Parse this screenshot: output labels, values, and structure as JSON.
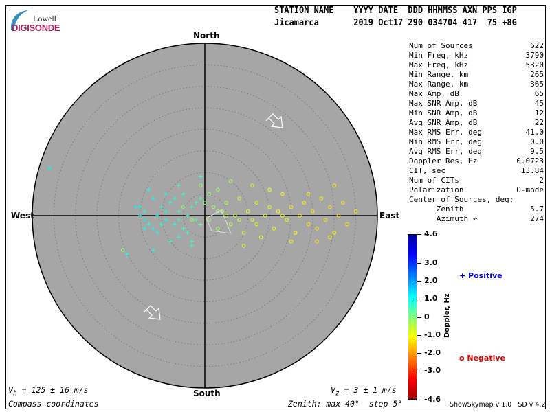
{
  "logo": {
    "line1": "Lowell",
    "line2": "DIGISONDE"
  },
  "header": {
    "labels": "STATION NAME    YYYY DATE  DDD HHMMSS AXN PPS IGP",
    "values": "Jicamarca       2019 Oct17 290 034704 417  75 +8G"
  },
  "stats": [
    {
      "label": "Num of Sources",
      "value": "622"
    },
    {
      "label": "Min Freq, kHz",
      "value": "3790"
    },
    {
      "label": "Max Freq, kHz",
      "value": "5320"
    },
    {
      "label": "Min Range, km",
      "value": "265"
    },
    {
      "label": "Max Range, km",
      "value": "365"
    },
    {
      "label": "Max Amp, dB",
      "value": "65"
    },
    {
      "label": "Max SNR Amp, dB",
      "value": "45"
    },
    {
      "label": "Min SNR Amp, dB",
      "value": "12"
    },
    {
      "label": "Avg SNR Amp, dB",
      "value": "22"
    },
    {
      "label": "Max RMS Err, deg",
      "value": "41.0"
    },
    {
      "label": "Min RMS Err, deg",
      "value": "0.0"
    },
    {
      "label": "Avg RMS Err, deg",
      "value": "9.5"
    },
    {
      "label": "Doppler Res, Hz",
      "value": "0.0723"
    },
    {
      "label": "CIT, sec",
      "value": "13.84"
    },
    {
      "label": "Num of CITs",
      "value": "2"
    },
    {
      "label": "Polarization",
      "value": "O-mode"
    },
    {
      "label": "Center of Sources, deg:",
      "value": ""
    },
    {
      "label": "      Zenith",
      "value": "5.7"
    },
    {
      "label": "      Azimuth ↶",
      "value": "274"
    }
  ],
  "compass": {
    "north": "North",
    "south": "South",
    "east": "East",
    "west": "West"
  },
  "footer": {
    "vh": "V",
    "vh_sub": "h",
    "vh_value": " = 125 ± 16 m/s",
    "vz": "V",
    "vz_sub": "z",
    "vz_value": " = 3 ± 1 m/s",
    "coords": "Compass coordinates",
    "zenith": "Zenith: max 40°  step 5°",
    "version": "ShowSkymap v 1.0   SD v 4.2"
  },
  "legend": {
    "positive": "Positive",
    "negative": "Negative",
    "positive_color": "#0000dd",
    "negative_color": "#dd0000"
  },
  "chart_data": {
    "type": "scatter",
    "projection": "polar sky map, compass coordinates",
    "zenith_max_deg": 40,
    "zenith_step_deg": 5,
    "background": "#a6a6a6",
    "colorbar": {
      "label": "Doppler, Hz",
      "range": [
        -4.6,
        4.6
      ],
      "colormap": "jet (red negative, blue positive)",
      "tick_labels": [
        "4.6",
        "3.0",
        "2.0",
        "1.0",
        "0",
        "-1.0",
        "-2.0",
        "-3.0",
        "-4.6"
      ],
      "tick_values": [
        4.6,
        3.0,
        2.0,
        1.0,
        0,
        -1.0,
        -2.0,
        -3.0,
        -4.6
      ]
    },
    "point_fields": [
      "east_deg",
      "north_deg",
      "doppler_hz"
    ],
    "points": [
      [
        -36,
        11,
        1.2
      ],
      [
        -18,
        -9,
        1.0
      ],
      [
        -12,
        -3,
        1.1
      ],
      [
        -15,
        0,
        1.2
      ],
      [
        -14,
        1,
        1.0
      ],
      [
        -13,
        -2,
        0.9
      ],
      [
        -11,
        0,
        1.1
      ],
      [
        -10,
        2,
        0.8
      ],
      [
        -9,
        -1,
        1.0
      ],
      [
        -8,
        3,
        0.7
      ],
      [
        -7,
        -2,
        0.9
      ],
      [
        -6,
        1,
        0.6
      ],
      [
        -5,
        -3,
        0.7
      ],
      [
        -4,
        0,
        0.5
      ],
      [
        -3,
        2,
        0.6
      ],
      [
        -2,
        -1,
        0.4
      ],
      [
        -1,
        4,
        0.5
      ],
      [
        -6,
        -5,
        0.8
      ],
      [
        -9,
        5,
        0.9
      ],
      [
        -12,
        4,
        1.0
      ],
      [
        -3,
        -6,
        0.6
      ],
      [
        -1,
        9,
        0.7
      ],
      [
        -6,
        7,
        0.6
      ],
      [
        -14,
        -3,
        1.1
      ],
      [
        -16,
        2,
        1.2
      ],
      [
        -11,
        -4,
        1.0
      ],
      [
        -5,
        5,
        0.7
      ],
      [
        -8,
        -6,
        0.8
      ],
      [
        -4,
        -4,
        0.6
      ],
      [
        -13,
        6,
        1.0
      ],
      [
        -7,
        4,
        0.8
      ],
      [
        -10,
        -2,
        0.9
      ],
      [
        -6,
        -1,
        0.6
      ],
      [
        -1,
        -2,
        0.3
      ],
      [
        -3,
        -7,
        0.5
      ],
      [
        -12,
        -8,
        0.9
      ],
      [
        -15,
        2,
        1.1
      ],
      [
        -14,
        -1,
        1.2
      ],
      [
        -9,
        1,
        1.0
      ],
      [
        -2,
        3,
        0.5
      ],
      [
        1,
        -1,
        -0.2
      ],
      [
        2,
        2,
        -0.3
      ],
      [
        3,
        -3,
        -0.3
      ],
      [
        4,
        1,
        -0.4
      ],
      [
        5,
        3,
        -0.5
      ],
      [
        6,
        -2,
        -0.5
      ],
      [
        7,
        0,
        -0.6
      ],
      [
        8,
        4,
        -0.7
      ],
      [
        9,
        -4,
        -0.7
      ],
      [
        10,
        1,
        -0.8
      ],
      [
        11,
        -1,
        -0.8
      ],
      [
        12,
        3,
        -0.9
      ],
      [
        13,
        -5,
        -0.9
      ],
      [
        14,
        0,
        -1.0
      ],
      [
        15,
        2,
        -1.0
      ],
      [
        16,
        -3,
        -1.1
      ],
      [
        17,
        1,
        -1.1
      ],
      [
        18,
        5,
        -1.2
      ],
      [
        19,
        -1,
        -1.2
      ],
      [
        20,
        2,
        -1.3
      ],
      [
        21,
        -4,
        -1.2
      ],
      [
        22,
        0,
        -1.3
      ],
      [
        23,
        3,
        -1.3
      ],
      [
        24,
        -2,
        -1.4
      ],
      [
        25,
        1,
        -1.3
      ],
      [
        26,
        -3,
        -1.4
      ],
      [
        27,
        4,
        -1.3
      ],
      [
        28,
        -1,
        -1.4
      ],
      [
        29,
        2,
        -1.4
      ],
      [
        30,
        -4,
        -1.3
      ],
      [
        31,
        0,
        -1.4
      ],
      [
        32,
        3,
        -1.3
      ],
      [
        33,
        -2,
        -1.4
      ],
      [
        35,
        1,
        -1.3
      ],
      [
        30,
        7,
        -1.4
      ],
      [
        20,
        -6,
        -1.2
      ],
      [
        9,
        -7,
        -0.7
      ],
      [
        15,
        6,
        -1.0
      ],
      [
        3,
        6,
        -0.2
      ],
      [
        6,
        8,
        -0.4
      ],
      [
        29,
        -5,
        -1.3
      ],
      [
        24,
        5,
        -1.3
      ],
      [
        11,
        7,
        -0.8
      ],
      [
        -19,
        -8,
        -0.1
      ],
      [
        -5,
        2,
        -0.1
      ],
      [
        -3,
        -1,
        -0.2
      ],
      [
        0,
        3,
        -0.1
      ],
      [
        -1,
        7,
        -0.2
      ],
      [
        26,
        -6,
        -1.4
      ],
      [
        12,
        -2,
        -0.9
      ],
      [
        5,
        0,
        -0.5
      ],
      [
        8,
        -1,
        -0.6
      ],
      [
        18,
        0,
        -1.2
      ],
      [
        3,
        1,
        -0.3
      ],
      [
        1,
        5,
        -0.1
      ]
    ],
    "velocity_arrows_azimuth_deg": [
      120,
      120
    ]
  }
}
